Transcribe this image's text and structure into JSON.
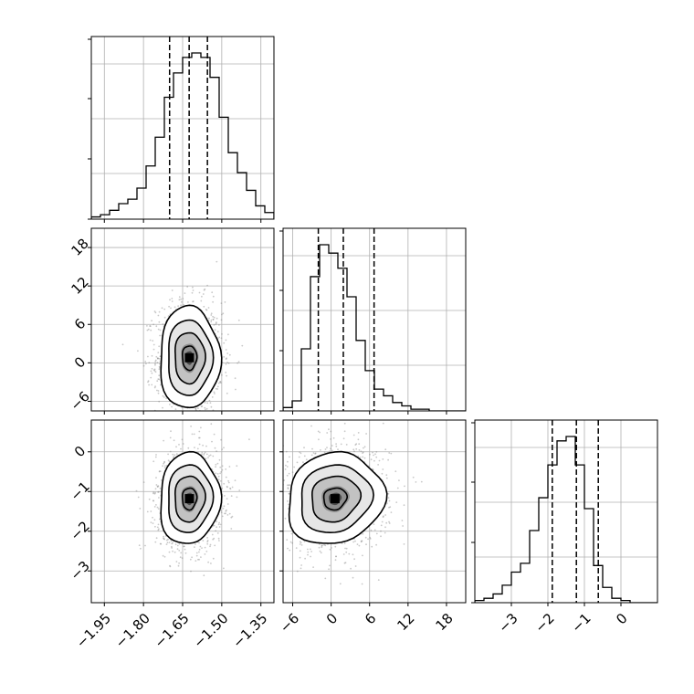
{
  "chart_data": {
    "type": "corner",
    "grid": true,
    "parameters": [
      {
        "xlim": [
          -2.0,
          -1.3
        ],
        "ticks": [
          -1.95,
          -1.8,
          -1.65,
          -1.5,
          -1.35
        ],
        "tick_labels": [
          "−1.95",
          "−1.80",
          "−1.65",
          "−1.50",
          "−1.35"
        ]
      },
      {
        "xlim": [
          -7.5,
          21.0
        ],
        "ticks": [
          -6,
          0,
          6,
          12,
          18
        ],
        "tick_labels": [
          "−6",
          "0",
          "6",
          "12",
          "18"
        ]
      },
      {
        "xlim": [
          -4.0,
          1.0
        ],
        "ticks": [
          -3,
          -2,
          -1,
          0
        ],
        "tick_labels": [
          "−3",
          "−2",
          "−1",
          "0"
        ]
      }
    ],
    "y_ranges": [
      null,
      {
        "ylim": [
          -7.5,
          21.0
        ],
        "ticks": [
          -6,
          0,
          6,
          12,
          18
        ],
        "tick_labels": [
          "−6",
          "0",
          "6",
          "12",
          "18"
        ]
      },
      {
        "ylim": [
          -3.8,
          0.8
        ],
        "ticks": [
          -3,
          -2,
          -1,
          0
        ],
        "tick_labels": [
          "−3",
          "−2",
          "−1",
          "0"
        ]
      }
    ],
    "histograms": [
      {
        "edges_start": -2.0,
        "bin_width": 0.035,
        "counts": [
          1,
          2,
          4,
          7,
          9,
          14,
          24,
          37,
          55,
          66,
          73,
          75,
          73,
          64,
          46,
          30,
          21,
          13,
          6,
          3
        ],
        "quantiles": [
          -1.7,
          -1.625,
          -1.555
        ]
      },
      {
        "edges_start": -7.5,
        "bin_width": 1.425,
        "counts": [
          2,
          6,
          37,
          80,
          99,
          94,
          85,
          68,
          42,
          24,
          13,
          9,
          5,
          3,
          1,
          1,
          0,
          0,
          0,
          0
        ],
        "quantiles": [
          -2.0,
          1.9,
          6.7
        ]
      },
      {
        "edges_start": -4.0,
        "bin_width": 0.25,
        "counts": [
          1,
          2,
          4,
          8,
          14,
          18,
          33,
          48,
          63,
          74,
          76,
          63,
          43,
          17,
          7,
          2,
          1,
          0,
          0,
          0
        ],
        "quantiles": [
          -1.88,
          -1.22,
          -0.62
        ]
      }
    ],
    "pairs": [
      {
        "x_param": 0,
        "y_param": 1,
        "center": [
          -1.624,
          0.8
        ],
        "sigma": [
          0.055,
          3.8
        ],
        "rho": 0.0
      },
      {
        "x_param": 0,
        "y_param": 2,
        "center": [
          -1.624,
          -1.18
        ],
        "sigma": [
          0.055,
          0.55
        ],
        "rho": 0.05
      },
      {
        "x_param": 1,
        "y_param": 2,
        "center": [
          0.6,
          -1.18
        ],
        "sigma": [
          3.6,
          0.55
        ],
        "rho": 0.1
      }
    ],
    "quantile_line_style": "dashed",
    "colors": {
      "line": "#000000",
      "grid": "#b0b0b0",
      "points": "#888888"
    }
  }
}
